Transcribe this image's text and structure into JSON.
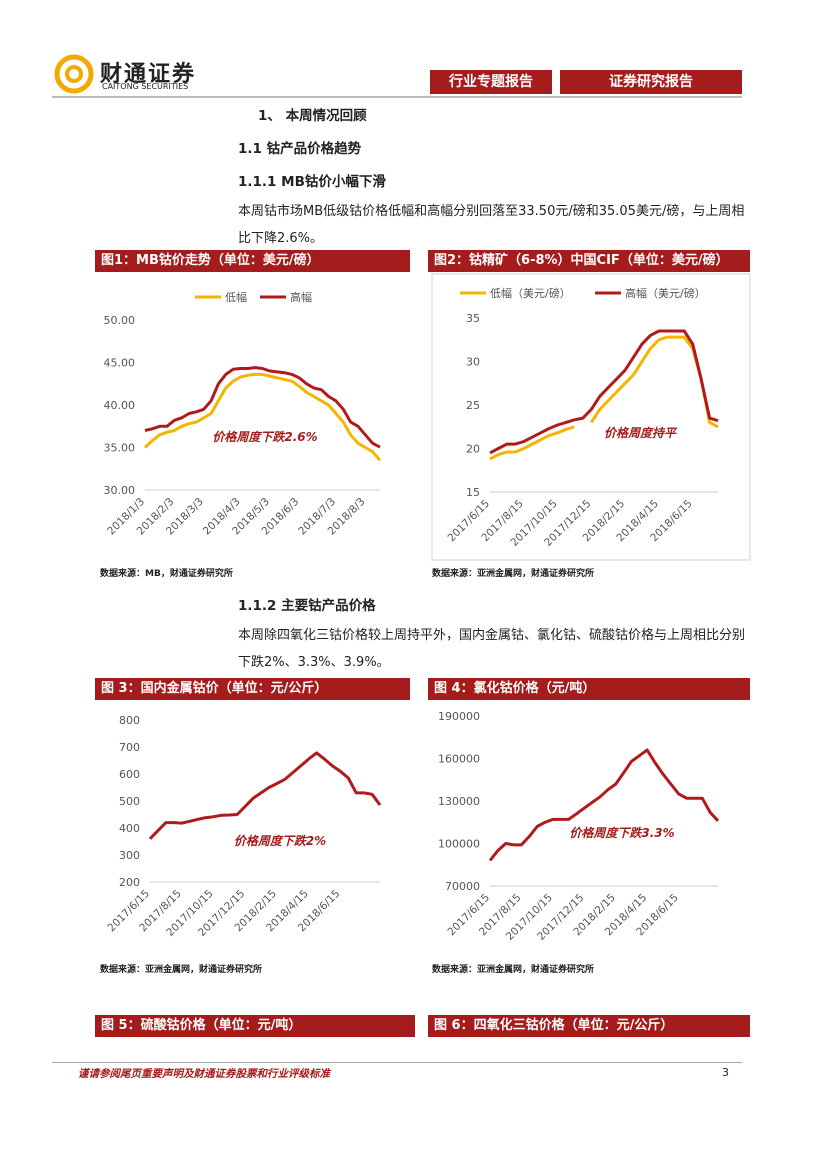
{
  "header": {
    "logo_cn": "财通证券",
    "logo_en": "CAITONG SECURITIES",
    "tag1": "行业专题报告",
    "tag2": "证券研究报告"
  },
  "sections": {
    "h1": "1、 本周情况回顾",
    "h2": "1.1  钴产品价格趋势",
    "h3a": "1.1.1  MB钴价小幅下滑",
    "p1": "本周钴市场MB低级钴价格低幅和高幅分别回落至33.50元/磅和35.05美元/磅，与上周相比下降2.6%。",
    "h3b": "1.1.2  主要钴产品价格",
    "p2": "本周除四氧化三钴价格较上周持平外，国内金属钴、氯化钴、硫酸钴价格与上周相比分别下跌2%、3.3%、3.9%。"
  },
  "chart_data": [
    {
      "type": "line",
      "title": "图1：MB钴价走势（单位：美元/磅）",
      "source": "数据来源：MB，财通证券研究所",
      "annotation": "价格周度下跌2.6%",
      "grid": false,
      "legend": "top",
      "categories": [
        "2018/1/3",
        null,
        null,
        null,
        "2018/2/3",
        null,
        null,
        null,
        "2018/3/3",
        null,
        null,
        null,
        null,
        "2018/4/3",
        null,
        null,
        null,
        "2018/5/3",
        null,
        null,
        null,
        "2018/6/3",
        null,
        null,
        null,
        null,
        "2018/7/3",
        null,
        null,
        null,
        "2018/8/3",
        null,
        null
      ],
      "series": [
        {
          "name": "低幅",
          "color": "#f5b400",
          "values": [
            35.0,
            35.8,
            36.5,
            36.8,
            37.0,
            37.5,
            37.8,
            38.0,
            38.5,
            39.0,
            40.5,
            42.0,
            42.8,
            43.3,
            43.5,
            43.6,
            43.6,
            43.4,
            43.2,
            43.0,
            42.8,
            42.2,
            41.5,
            41.0,
            40.5,
            40.0,
            39.0,
            38.0,
            36.5,
            35.5,
            35.0,
            34.5,
            33.5
          ]
        },
        {
          "name": "高幅",
          "color": "#b01a1a",
          "values": [
            37.0,
            37.2,
            37.5,
            37.5,
            38.2,
            38.5,
            39.0,
            39.2,
            39.5,
            40.5,
            42.5,
            43.6,
            44.2,
            44.3,
            44.3,
            44.4,
            44.3,
            44.0,
            43.9,
            43.8,
            43.6,
            43.2,
            42.5,
            42.0,
            41.8,
            41.0,
            40.5,
            39.5,
            38.0,
            37.5,
            36.5,
            35.5,
            35.05
          ]
        }
      ],
      "ylim": [
        30,
        50
      ],
      "yticks": [
        {
          "value": 30,
          "label": "30.00"
        },
        {
          "value": 35,
          "label": "35.00"
        },
        {
          "value": 40,
          "label": "40.00"
        },
        {
          "value": 45,
          "label": "45.00"
        },
        {
          "value": 50,
          "label": "50.00"
        }
      ]
    },
    {
      "type": "line",
      "title": "图2：钴精矿（6-8%）中国CIF（单位：美元/磅）",
      "source": "数据来源：亚洲金属网，财通证券研究所",
      "annotation": "价格周度持平",
      "grid": false,
      "legend": "top",
      "categories": [
        "2017/6/15",
        null,
        null,
        null,
        "2017/8/15",
        null,
        null,
        null,
        "2017/10/15",
        null,
        null,
        null,
        "2017/12/15",
        null,
        null,
        null,
        "2018/2/15",
        null,
        null,
        null,
        "2018/4/15",
        null,
        null,
        null,
        "2018/6/15",
        null,
        null,
        null
      ],
      "series": [
        {
          "name": "低幅（美元/磅）",
          "color": "#f5b400",
          "values": [
            18.8,
            19.3,
            19.6,
            19.6,
            20.0,
            20.5,
            21.0,
            21.5,
            21.8,
            22.2,
            22.5,
            null,
            23.0,
            24.5,
            25.5,
            26.5,
            27.5,
            28.5,
            30.0,
            31.5,
            32.5,
            32.8,
            32.8,
            32.8,
            31.5,
            28.0,
            23.0,
            22.5
          ]
        },
        {
          "name": "高幅（美元/磅）",
          "color": "#b01a1a",
          "values": [
            19.5,
            20.0,
            20.5,
            20.5,
            20.8,
            21.3,
            21.8,
            22.3,
            22.7,
            23.0,
            23.3,
            23.5,
            24.5,
            26.0,
            27.0,
            28.0,
            29.0,
            30.5,
            32.0,
            33.0,
            33.5,
            33.5,
            33.5,
            33.5,
            32.0,
            28.0,
            23.5,
            23.2
          ]
        }
      ],
      "ylim": [
        15,
        35
      ],
      "yticks": [
        15,
        20,
        25,
        30,
        35
      ]
    },
    {
      "type": "line",
      "title": "图 3：国内金属钴价（单位：元/公斤）",
      "source": "数据来源：亚洲金属网，财通证券研究所",
      "annotation": "价格周度下跌2%",
      "grid": false,
      "categories": [
        "2017/6/15",
        null,
        null,
        null,
        "2017/8/15",
        null,
        null,
        null,
        "2017/10/15",
        null,
        null,
        null,
        "2017/12/15",
        null,
        null,
        null,
        "2018/2/15",
        null,
        null,
        null,
        "2018/4/15",
        null,
        null,
        null,
        "2018/6/15",
        null,
        null,
        null,
        null,
        null
      ],
      "series": [
        {
          "color": "#b01a1a",
          "values": [
            360,
            390,
            420,
            420,
            418,
            425,
            432,
            438,
            442,
            447,
            448,
            450,
            480,
            510,
            530,
            550,
            565,
            580,
            605,
            630,
            655,
            678,
            655,
            630,
            610,
            585,
            530,
            530,
            525,
            485
          ]
        }
      ],
      "ylim": [
        200,
        800
      ],
      "yticks": [
        200,
        300,
        400,
        500,
        600,
        700,
        800
      ]
    },
    {
      "type": "line",
      "title": "图 4：氯化钴价格（元/吨）",
      "source": "数据来源：亚洲金属网，财通证券研究所",
      "annotation": "价格周度下跌3.3%",
      "grid": false,
      "categories": [
        "2017/6/15",
        null,
        null,
        null,
        "2017/8/15",
        null,
        null,
        null,
        "2017/10/15",
        null,
        null,
        null,
        "2017/12/15",
        null,
        null,
        null,
        "2018/2/15",
        null,
        null,
        null,
        "2018/4/15",
        null,
        null,
        null,
        "2018/6/15",
        null,
        null,
        null,
        null,
        null
      ],
      "series": [
        {
          "color": "#b01a1a",
          "values": [
            88000,
            95000,
            100000,
            99000,
            99000,
            105000,
            112000,
            115000,
            117000,
            117000,
            117000,
            121000,
            125000,
            129000,
            133000,
            138000,
            142000,
            150000,
            158000,
            162000,
            166000,
            157000,
            149000,
            142000,
            135000,
            132000,
            132000,
            132000,
            122000,
            116000
          ]
        }
      ],
      "ylim": [
        70000,
        190000
      ],
      "yticks": [
        70000,
        100000,
        130000,
        160000,
        190000
      ]
    }
  ],
  "more_figures": {
    "fig5": "图 5：硫酸钴价格（单位：元/吨）",
    "fig6": "图 6：四氧化三钴价格（单位：元/公斤）"
  },
  "footer": {
    "disclaimer": "谨请参阅尾页重要声明及财通证券股票和行业评级标准",
    "page": "3"
  }
}
